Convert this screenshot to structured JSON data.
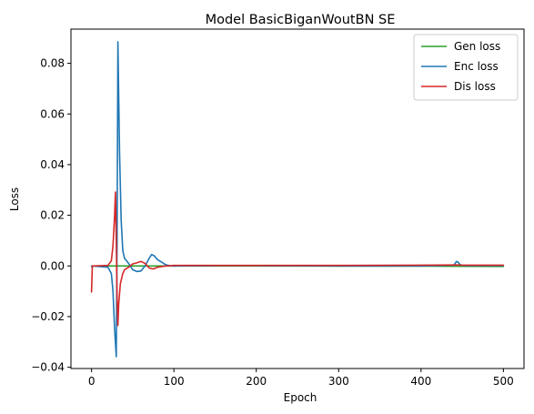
{
  "chart_data": {
    "type": "line",
    "title": "Model BasicBiganWoutBN SE",
    "xlabel": "Epoch",
    "ylabel": "Loss",
    "xlim": [
      -25,
      525
    ],
    "ylim": [
      -0.0405,
      0.0935
    ],
    "xticks": [
      0,
      100,
      200,
      300,
      400,
      500
    ],
    "xtick_labels": [
      "0",
      "100",
      "200",
      "300",
      "400",
      "500"
    ],
    "yticks": [
      -0.04,
      -0.02,
      0.0,
      0.02,
      0.04,
      0.06,
      0.08
    ],
    "ytick_labels": [
      "−0.04",
      "−0.02",
      "0.00",
      "0.02",
      "0.04",
      "0.06",
      "0.08"
    ],
    "grid": false,
    "legend_position": "top-right",
    "series": [
      {
        "name": "Gen loss",
        "color": "#2ca02c",
        "x": [
          0,
          25,
          30,
          35,
          50,
          100,
          200,
          300,
          400,
          500
        ],
        "y": [
          0.0,
          0.0,
          0.0,
          0.0,
          0.0,
          0.0,
          0.0,
          -0.0001,
          -0.0001,
          -0.0002
        ]
      },
      {
        "name": "Enc loss",
        "color": "#1f77b4",
        "x": [
          0,
          1,
          20,
          24,
          26,
          28,
          30,
          31,
          32,
          34,
          36,
          38,
          40,
          45,
          50,
          55,
          60,
          65,
          70,
          73,
          76,
          80,
          85,
          90,
          95,
          100,
          150,
          200,
          300,
          400,
          440,
          443,
          445,
          447,
          450,
          455,
          500
        ],
        "y": [
          -0.0002,
          0.0,
          -0.0005,
          -0.003,
          -0.01,
          -0.025,
          -0.0358,
          0.01,
          0.0885,
          0.045,
          0.018,
          0.006,
          0.003,
          0.001,
          -0.0015,
          -0.0022,
          -0.002,
          0.0,
          0.003,
          0.0045,
          0.004,
          0.0025,
          0.0015,
          0.0005,
          0.0001,
          0.0,
          0.0001,
          0.0001,
          0.0,
          0.0,
          0.0003,
          0.0018,
          0.0015,
          0.0006,
          0.0002,
          0.0001,
          0.0001
        ]
      },
      {
        "name": "Dis loss",
        "color": "#d62728",
        "x": [
          0,
          1,
          20,
          24,
          26,
          28,
          29,
          30,
          31,
          32,
          33,
          35,
          38,
          40,
          45,
          50,
          55,
          60,
          65,
          70,
          75,
          80,
          90,
          100,
          150,
          200,
          300,
          400,
          445,
          450,
          500
        ],
        "y": [
          -0.0103,
          0.0,
          0.0002,
          0.002,
          0.008,
          0.02,
          0.0292,
          0.01,
          -0.012,
          -0.0235,
          -0.015,
          -0.007,
          -0.003,
          -0.0015,
          -0.0005,
          0.0008,
          0.0012,
          0.0018,
          0.001,
          -0.0008,
          -0.0012,
          -0.0005,
          0.0,
          0.0002,
          0.0002,
          0.0002,
          0.0002,
          0.0003,
          0.0004,
          0.0003,
          0.0003
        ]
      }
    ]
  }
}
